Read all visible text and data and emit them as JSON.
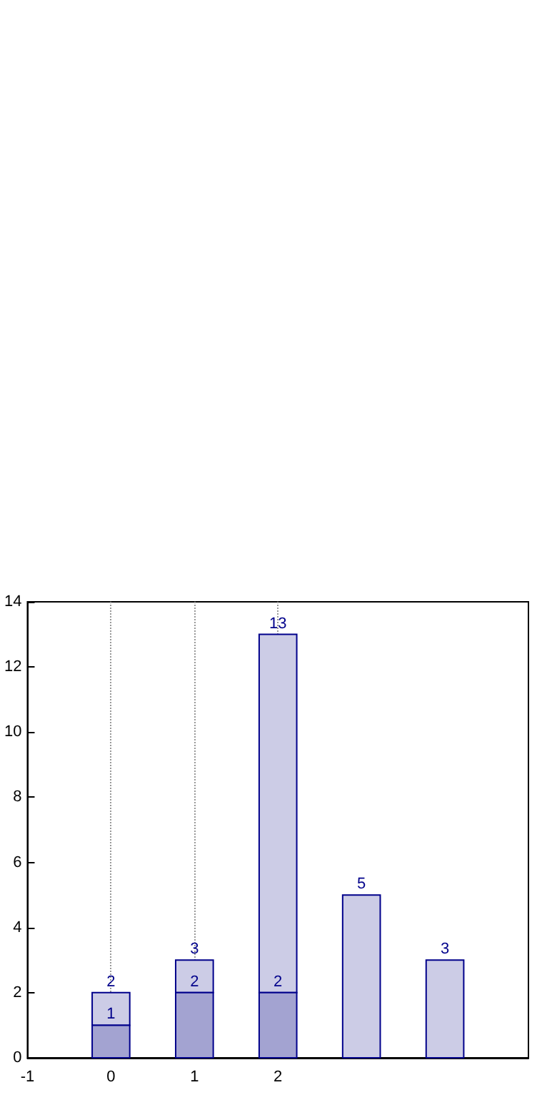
{
  "chart_data": {
    "type": "bar",
    "stacked": true,
    "xlim": [
      -1,
      5
    ],
    "xticks": [
      -1,
      0,
      1,
      2
    ],
    "ylim": [
      0,
      14
    ],
    "yticks": [
      0,
      2,
      4,
      6,
      8,
      10,
      12,
      14
    ],
    "grid": "x",
    "totals": [
      "2",
      "3",
      "13",
      "5",
      "3"
    ],
    "x": [
      0,
      1,
      2,
      3,
      4
    ],
    "series": [
      {
        "color": "#a3a3d1",
        "values": [
          1,
          2,
          2,
          null,
          null
        ],
        "value_labels": [
          "1",
          "2",
          "2",
          null,
          null
        ]
      },
      {
        "color": "#ccccE6",
        "values": [
          1,
          1,
          11,
          5,
          3
        ]
      }
    ]
  }
}
